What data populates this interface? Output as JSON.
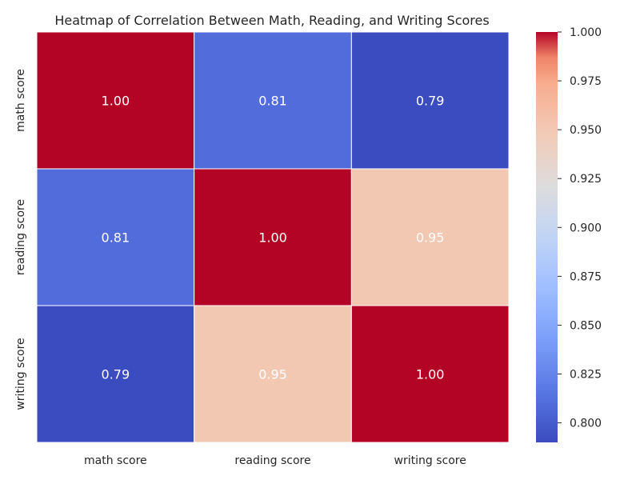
{
  "chart_data": {
    "type": "heatmap",
    "title": "Heatmap of Correlation Between Math, Reading, and Writing Scores",
    "x_categories": [
      "math score",
      "reading score",
      "writing score"
    ],
    "y_categories": [
      "math score",
      "reading score",
      "writing score"
    ],
    "values": [
      [
        1.0,
        0.81,
        0.79
      ],
      [
        0.81,
        1.0,
        0.95
      ],
      [
        0.79,
        0.95,
        1.0
      ]
    ],
    "cell_labels": [
      [
        "1.00",
        "0.81",
        "0.79"
      ],
      [
        "0.81",
        "1.00",
        "0.95"
      ],
      [
        "0.79",
        "0.95",
        "1.00"
      ]
    ],
    "colormap": "coolwarm",
    "colorbar": {
      "range": [
        0.79,
        1.0
      ],
      "ticks": [
        0.8,
        0.825,
        0.85,
        0.875,
        0.9,
        0.925,
        0.95,
        0.975,
        1.0
      ],
      "tick_labels": [
        "0.800",
        "0.825",
        "0.850",
        "0.875",
        "0.900",
        "0.925",
        "0.950",
        "0.975",
        "1.000"
      ]
    },
    "xlabel": "",
    "ylabel": ""
  }
}
